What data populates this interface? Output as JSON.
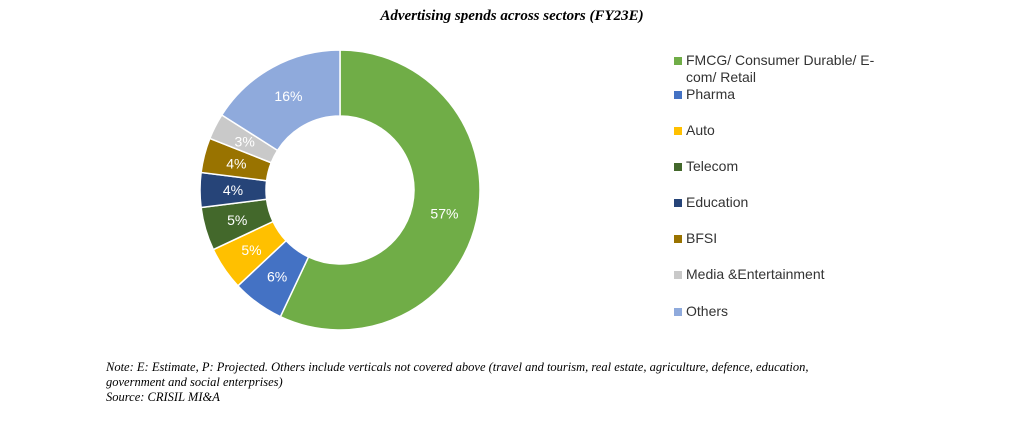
{
  "chart_data": {
    "type": "pie",
    "title": "Advertising spends across sectors (FY23E)",
    "donut": true,
    "series": [
      {
        "name": "FMCG/ Consumer Durable/ E-com/ Retail",
        "value": 57,
        "label": "57%",
        "color": "#70AD47"
      },
      {
        "name": "Pharma",
        "value": 6,
        "label": "6%",
        "color": "#4472C4"
      },
      {
        "name": "Auto",
        "value": 5,
        "label": "5%",
        "color": "#FFC000"
      },
      {
        "name": "Telecom",
        "value": 5,
        "label": "5%",
        "color": "#43682B"
      },
      {
        "name": "Education",
        "value": 4,
        "label": "4%",
        "color": "#264478"
      },
      {
        "name": "BFSI",
        "value": 4,
        "label": "4%",
        "color": "#997300"
      },
      {
        "name": "Media &Entertainment",
        "value": 3,
        "label": "3%",
        "color": "#C9C9C9"
      },
      {
        "name": "Others",
        "value": 16,
        "label": "16%",
        "color": "#8FAADC"
      }
    ],
    "legend_position": "right"
  },
  "legend": [
    {
      "line1": "FMCG/ Consumer Durable/ E-",
      "line2": "com/ Retail"
    },
    {
      "line1": "Pharma"
    },
    {
      "line1": "Auto"
    },
    {
      "line1": "Telecom"
    },
    {
      "line1": "Education"
    },
    {
      "line1": "BFSI"
    },
    {
      "line1": "Media &Entertainment"
    },
    {
      "line1": "Others"
    }
  ],
  "notes": {
    "line1": "Note: E: Estimate, P: Projected. Others include verticals not covered above (travel and tourism, real estate, agriculture, defence, education,",
    "line2": "government and social enterprises)",
    "source": "Source: CRISIL MI&A"
  }
}
